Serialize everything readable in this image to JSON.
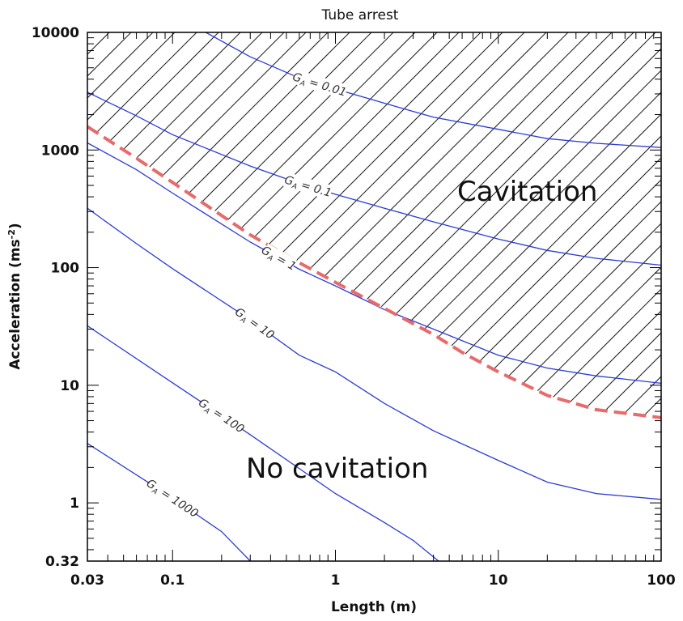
{
  "chart_data": {
    "type": "line",
    "title": "Tube arrest",
    "xlabel": "Length (m)",
    "ylabel_base": "Acceleration (ms",
    "ylabel_sup": "-2",
    "ylabel_end": ")",
    "xscale": "log",
    "yscale": "log",
    "xlim": [
      0.03,
      100
    ],
    "ylim": [
      0.32,
      10000
    ],
    "x_ticks": [
      {
        "value": 0.03,
        "label": "0.03"
      },
      {
        "value": 0.1,
        "label": "0.1"
      },
      {
        "value": 1,
        "label": "1"
      },
      {
        "value": 10,
        "label": "10"
      },
      {
        "value": 100,
        "label": "100"
      }
    ],
    "y_ticks": [
      {
        "value": 0.32,
        "label": "0.32"
      },
      {
        "value": 1,
        "label": "1"
      },
      {
        "value": 10,
        "label": "10"
      },
      {
        "value": 100,
        "label": "100"
      },
      {
        "value": 1000,
        "label": "1000"
      },
      {
        "value": 10000,
        "label": "10000"
      }
    ],
    "grid": false,
    "contour_symbol": "G",
    "contour_symbol_sub": "A",
    "contours": [
      {
        "value": "0.01",
        "points": [
          [
            0.16,
            10000
          ],
          [
            0.3,
            6200
          ],
          [
            0.6,
            4100
          ],
          [
            1,
            3300
          ],
          [
            2,
            2500
          ],
          [
            4,
            1900
          ],
          [
            10,
            1500
          ],
          [
            20,
            1250
          ],
          [
            40,
            1140
          ],
          [
            100,
            1050
          ]
        ]
      },
      {
        "value": "0.1",
        "points": [
          [
            0.03,
            3100
          ],
          [
            0.06,
            1950
          ],
          [
            0.1,
            1350
          ],
          [
            0.3,
            730
          ],
          [
            0.6,
            520
          ],
          [
            1,
            420
          ],
          [
            2,
            320
          ],
          [
            4,
            245
          ],
          [
            10,
            175
          ],
          [
            20,
            140
          ],
          [
            40,
            120
          ],
          [
            100,
            105
          ]
        ]
      },
      {
        "value": "1",
        "points": [
          [
            0.03,
            1150
          ],
          [
            0.06,
            680
          ],
          [
            0.1,
            430
          ],
          [
            0.3,
            165
          ],
          [
            0.6,
            97
          ],
          [
            1,
            70
          ],
          [
            2,
            44
          ],
          [
            4,
            30
          ],
          [
            10,
            18
          ],
          [
            20,
            14
          ],
          [
            40,
            12
          ],
          [
            100,
            10.4
          ]
        ]
      },
      {
        "value": "10",
        "points": [
          [
            0.03,
            320
          ],
          [
            0.06,
            160
          ],
          [
            0.1,
            98
          ],
          [
            0.3,
            36
          ],
          [
            0.6,
            18
          ],
          [
            1,
            13
          ],
          [
            2,
            7
          ],
          [
            4,
            4.1
          ],
          [
            10,
            2.3
          ],
          [
            20,
            1.5
          ],
          [
            40,
            1.2
          ],
          [
            100,
            1.07
          ]
        ]
      },
      {
        "value": "100",
        "points": [
          [
            0.03,
            32
          ],
          [
            0.1,
            10.5
          ],
          [
            0.3,
            3.8
          ],
          [
            1,
            1.2
          ],
          [
            2,
            0.68
          ],
          [
            3,
            0.48
          ],
          [
            4.3,
            0.32
          ]
        ]
      },
      {
        "value": "1000",
        "points": [
          [
            0.03,
            3.2
          ],
          [
            0.1,
            1.1
          ],
          [
            0.2,
            0.57
          ],
          [
            0.3,
            0.32
          ]
        ]
      }
    ],
    "cavitation_boundary": {
      "color": "#e86a6a",
      "style": "dashed",
      "points": [
        [
          0.03,
          1580
        ],
        [
          0.06,
          850
        ],
        [
          0.1,
          530
        ],
        [
          0.3,
          190
        ],
        [
          0.6,
          110
        ],
        [
          1,
          75
        ],
        [
          2,
          45
        ],
        [
          4,
          27
        ],
        [
          6,
          19
        ],
        [
          10,
          13
        ],
        [
          20,
          8.2
        ],
        [
          40,
          6.2
        ],
        [
          100,
          5.3
        ]
      ]
    },
    "contour_color": "#2b3bd6",
    "hatch": "diagonal lines above boundary",
    "regions": [
      {
        "label": "Cavitation"
      },
      {
        "label": "No cavitation"
      }
    ]
  }
}
